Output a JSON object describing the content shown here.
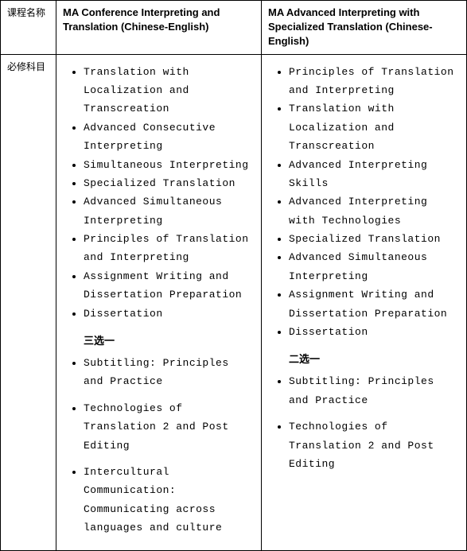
{
  "table": {
    "header": {
      "row_label": "课程名称",
      "program1": "MA Conference Interpreting and Translation (Chinese-English)",
      "program2": "MA Advanced Interpreting with Specialized Translation (Chinese-English)"
    },
    "row1": {
      "label": "必修科目",
      "program1": {
        "compulsory": [
          "Translation with Localization and Transcreation",
          "Advanced Consecutive Interpreting",
          "Simultaneous Interpreting",
          "Specialized Translation",
          "Advanced Simultaneous Interpreting",
          "Principles of Translation and Interpreting",
          "Assignment Writing and Dissertation Preparation",
          "Dissertation"
        ],
        "choose_label": "三选一",
        "optional": [
          "Subtitling: Principles and Practice",
          "Technologies of Translation 2 and Post Editing",
          "Intercultural Communication: Communicating across languages and culture"
        ]
      },
      "program2": {
        "compulsory": [
          "Principles of Translation and Interpreting",
          "Translation with Localization and Transcreation",
          "Advanced Interpreting Skills",
          "Advanced Interpreting with Technologies",
          "Specialized Translation",
          "Advanced Simultaneous Interpreting",
          "Assignment Writing and Dissertation Preparation",
          "Dissertation"
        ],
        "choose_label": "二选一",
        "optional": [
          "Subtitling: Principles and Practice",
          "Technologies of Translation 2 and Post Editing"
        ]
      }
    }
  }
}
